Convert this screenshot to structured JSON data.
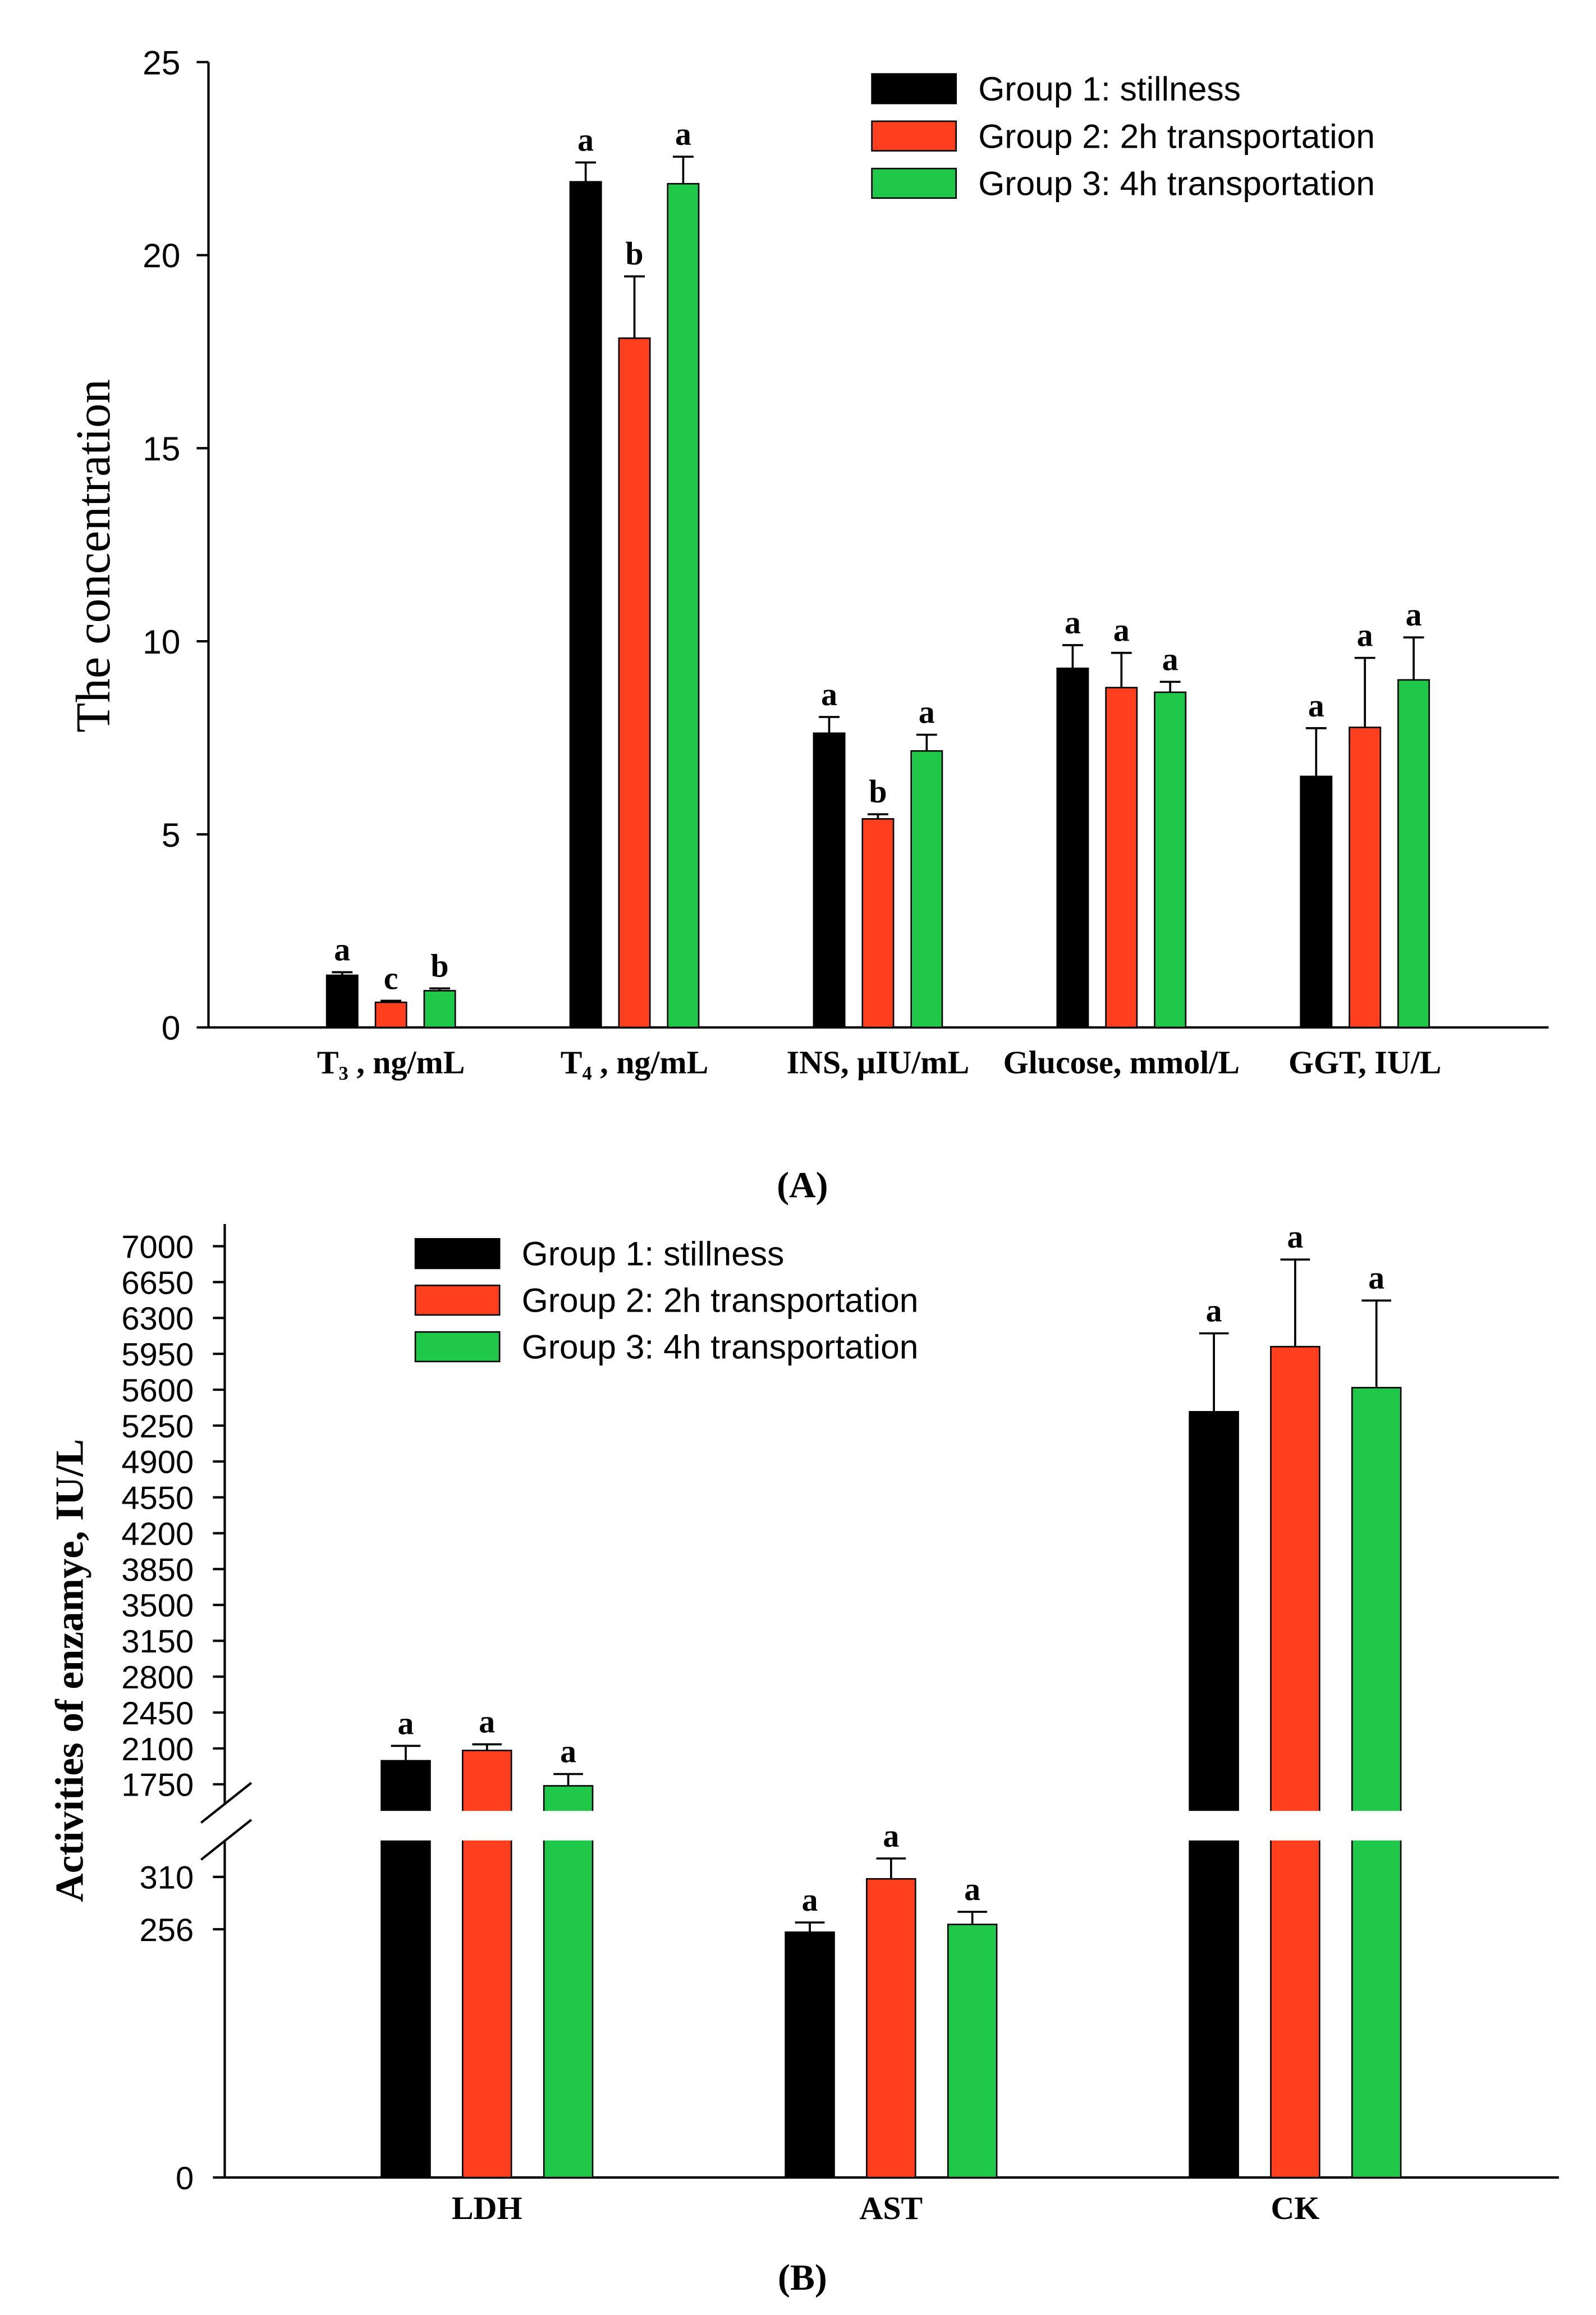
{
  "captions": [
    "(A)",
    "(B)"
  ],
  "chart_data": [
    {
      "type": "bar",
      "ylabel": "The concentration",
      "ylim": [
        0,
        25
      ],
      "yticks": [
        0,
        5,
        10,
        15,
        20,
        25
      ],
      "grid": false,
      "legend_position": "top-right",
      "categories": [
        "T₃ , ng/mL",
        "T₄ , ng/mL",
        "INS, μIU/mL",
        "Glucose, mmol/L",
        "GGT, IU/L"
      ],
      "series": [
        {
          "name": "Group 1: stillness",
          "color": "#000000",
          "values": [
            1.35,
            21.9,
            7.62,
            9.3,
            6.5
          ],
          "errors": [
            0.08,
            0.5,
            0.42,
            0.6,
            1.25
          ],
          "letters": [
            "a",
            "a",
            "a",
            "a",
            "a"
          ]
        },
        {
          "name": "Group 2: 2h transportation",
          "color": "#FF3F1E",
          "values": [
            0.65,
            17.85,
            5.4,
            8.8,
            7.77
          ],
          "errors": [
            0.04,
            1.6,
            0.12,
            0.9,
            1.8
          ],
          "letters": [
            "c",
            "b",
            "b",
            "a",
            "a"
          ]
        },
        {
          "name": "Group 3: 4h transportation",
          "color": "#20C84A",
          "values": [
            0.95,
            21.85,
            7.16,
            8.68,
            9.0
          ],
          "errors": [
            0.06,
            0.7,
            0.42,
            0.27,
            1.1
          ],
          "letters": [
            "b",
            "a",
            "a",
            "a",
            "a"
          ]
        }
      ]
    },
    {
      "type": "bar",
      "ylabel": "Activities of enzamye, IU/L",
      "ylim": [
        0,
        7200
      ],
      "y_break": [
        350,
        1490
      ],
      "yticks": [
        0,
        256,
        310,
        1750,
        2100,
        2450,
        2800,
        3150,
        3500,
        3850,
        4200,
        4550,
        4900,
        5250,
        5600,
        5950,
        6300,
        6650,
        7000
      ],
      "grid": false,
      "legend_position": "top-left",
      "categories": [
        "LDH",
        "AST",
        "CK"
      ],
      "series": [
        {
          "name": "Group 1: stillness",
          "color": "#000000",
          "values": [
            1980,
            253,
            5385
          ],
          "errors": [
            145,
            10,
            765
          ],
          "letters": [
            "a",
            "a",
            "a"
          ]
        },
        {
          "name": "Group 2: 2h transportation",
          "color": "#FF3F1E",
          "values": [
            2080,
            308,
            6020
          ],
          "errors": [
            60,
            21,
            850
          ],
          "letters": [
            "a",
            "a",
            "a"
          ]
        },
        {
          "name": "Group 3: 4h transportation",
          "color": "#20C84A",
          "values": [
            1735,
            261,
            5620
          ],
          "errors": [
            115,
            13,
            850
          ],
          "letters": [
            "a",
            "a",
            "a"
          ]
        }
      ]
    }
  ]
}
